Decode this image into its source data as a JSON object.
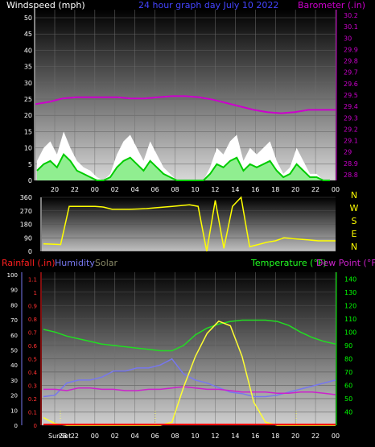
{
  "header": {
    "wind_title": "Windspeed (mph)",
    "date_title": "24 hour graph day   July 10 2022",
    "baro_title": "Barometer (.in)"
  },
  "bottom_header": {
    "rain_title": "Rainfall (.in)",
    "humidity_title": "Humidity",
    "solar_title": "Solar",
    "temp_title": "Temperature (°F)",
    "dew_title": "Dew Point (°F)",
    "sunset_label": "SunSet",
    "sunrise_label": "28"
  },
  "colors": {
    "wind_gust": "#ffffff",
    "wind_avg": "#90ee90",
    "wind_dir": "#00cc00",
    "barometer": "#cc00cc",
    "direction": "#ffff00",
    "rain": "#ff0000",
    "humidity": "#7777ee",
    "solar": "#ffff33",
    "temperature": "#22dd22",
    "dewpoint": "#cc22cc",
    "axis_left": "#ffffff",
    "axis_right_top": "#cc00cc",
    "axis_right_bottom": "#00ff00"
  },
  "chart_data": [
    {
      "type": "area",
      "name": "wind",
      "x_ticks": [
        "20",
        "22",
        "00",
        "02",
        "04",
        "06",
        "08",
        "10",
        "12",
        "14",
        "16",
        "18",
        "20",
        "22",
        "00"
      ],
      "y_left": {
        "ticks": [
          0,
          5,
          10,
          15,
          20,
          25,
          30,
          35,
          40,
          45,
          50
        ],
        "range": [
          0,
          50
        ]
      },
      "y_right": {
        "ticks": [
          "28.8",
          "28.9",
          "29",
          "29.1",
          "29.2",
          "29.3",
          "29.4",
          "29.5",
          "29.6",
          "29.7",
          "29.8",
          "29.9",
          "30",
          "30.1",
          "30.2"
        ],
        "range": [
          28.75,
          30.25
        ]
      },
      "series": [
        {
          "name": "Windspeed gust",
          "values": [
            6,
            10,
            12,
            8,
            15,
            10,
            6,
            4,
            3,
            1,
            0,
            2,
            8,
            12,
            14,
            10,
            6,
            12,
            8,
            4,
            2,
            0,
            0,
            0,
            0,
            0,
            4,
            10,
            8,
            12,
            14,
            6,
            10,
            8,
            10,
            12,
            6,
            2,
            4,
            10,
            6,
            2,
            2,
            0,
            0
          ]
        },
        {
          "name": "Windspeed avg",
          "values": [
            3,
            5,
            6,
            4,
            8,
            6,
            3,
            2,
            1,
            0,
            0,
            1,
            4,
            6,
            7,
            5,
            3,
            6,
            4,
            2,
            1,
            0,
            0,
            0,
            0,
            0,
            2,
            5,
            4,
            6,
            7,
            3,
            5,
            4,
            5,
            6,
            3,
            1,
            2,
            5,
            3,
            1,
            1,
            0,
            0
          ]
        },
        {
          "name": "Barometer",
          "values": [
            29.42,
            29.44,
            29.47,
            29.48,
            29.48,
            29.48,
            29.48,
            29.47,
            29.47,
            29.48,
            29.49,
            29.49,
            29.48,
            29.46,
            29.43,
            29.4,
            29.37,
            29.35,
            29.34,
            29.35,
            29.37,
            29.37,
            29.37
          ]
        }
      ]
    },
    {
      "type": "line",
      "name": "wind direction",
      "x_ticks": [
        "20",
        "22",
        "00",
        "02",
        "04",
        "06",
        "08",
        "10",
        "12",
        "14",
        "16",
        "18",
        "20",
        "22",
        "00"
      ],
      "y_left": {
        "ticks": [
          0,
          90,
          180,
          270,
          360
        ],
        "range": [
          0,
          360
        ]
      },
      "y_right_labels": [
        "N",
        "W",
        "S",
        "E",
        "N"
      ],
      "series": [
        {
          "name": "Direction",
          "values": [
            50,
            48,
            45,
            300,
            300,
            300,
            300,
            295,
            280,
            280,
            280,
            282,
            285,
            290,
            295,
            300,
            305,
            310,
            300,
            0,
            340,
            20,
            300,
            360,
            30,
            45,
            60,
            70,
            90,
            85,
            80,
            75,
            70,
            70,
            70
          ]
        }
      ]
    },
    {
      "type": "line",
      "name": "temperature etc",
      "x_ticks": [
        "SunSet",
        "22",
        "00",
        "02",
        "04",
        "06",
        "08",
        "10",
        "12",
        "14",
        "16",
        "18",
        "20",
        "22",
        "00"
      ],
      "y_left_humidity": {
        "ticks": [
          0,
          10,
          20,
          30,
          40,
          50,
          60,
          70,
          80,
          90,
          100
        ],
        "range": [
          0,
          100
        ]
      },
      "y_left_rain": {
        "ticks": [
          "0",
          "0.1",
          "0.2",
          "0.3",
          "0.4",
          "0.5",
          "0.6",
          "0.7",
          "0.8",
          "0.9",
          "1",
          "1.1"
        ],
        "range": [
          0,
          1.15
        ]
      },
      "y_right": {
        "ticks": [
          40,
          50,
          60,
          70,
          80,
          90,
          100,
          110,
          120,
          130,
          140
        ],
        "range": [
          30,
          145
        ]
      },
      "series": [
        {
          "name": "Temperature",
          "values": [
            102,
            100,
            97,
            95,
            93,
            91,
            90,
            89,
            88,
            87,
            86,
            86,
            90,
            98,
            103,
            106,
            108,
            109,
            109,
            109,
            108,
            105,
            100,
            96,
            93,
            91
          ]
        },
        {
          "name": "Dew Point",
          "values": [
            57,
            57,
            56,
            58,
            58,
            57,
            57,
            56,
            56,
            57,
            57,
            58,
            59,
            58,
            57,
            57,
            56,
            55,
            55,
            55,
            54,
            54,
            55,
            55,
            54,
            53
          ]
        },
        {
          "name": "Humidity",
          "values": [
            19,
            20,
            28,
            30,
            30,
            32,
            36,
            36,
            38,
            38,
            40,
            44,
            34,
            30,
            28,
            25,
            22,
            21,
            19,
            19,
            20,
            22,
            24,
            26,
            28,
            30
          ]
        },
        {
          "name": "Solar",
          "values": [
            5,
            1,
            0,
            0,
            0,
            0,
            0,
            0,
            0,
            0,
            0,
            2,
            25,
            45,
            60,
            68,
            65,
            45,
            15,
            2,
            0,
            0,
            0,
            0,
            0,
            0
          ]
        },
        {
          "name": "Rainfall",
          "values": [
            0,
            0,
            0,
            0,
            0,
            0,
            0,
            0,
            0,
            0,
            0,
            0,
            0,
            0,
            0,
            0,
            0,
            0,
            0,
            0,
            0,
            0,
            0,
            0,
            0,
            0
          ]
        }
      ]
    }
  ]
}
